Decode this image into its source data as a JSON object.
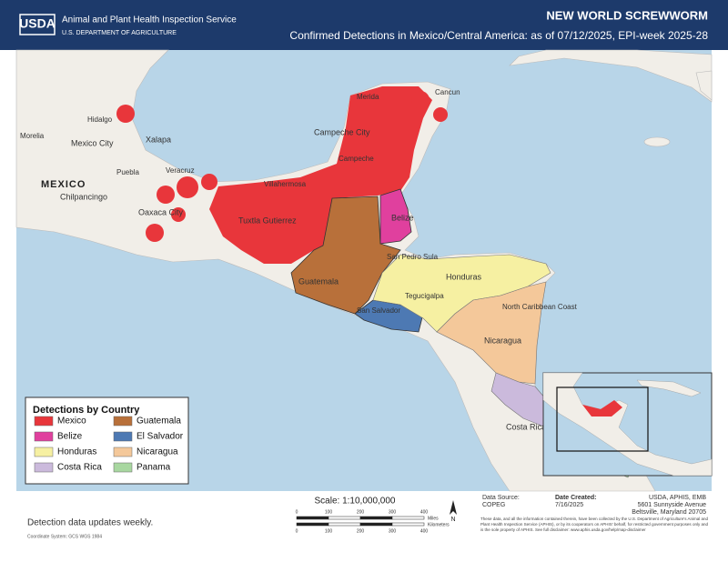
{
  "header": {
    "logo": "USDA",
    "agency": "Animal and Plant Health Inspection Service",
    "department": "U.S. DEPARTMENT OF AGRICULTURE",
    "title": "NEW WORLD SCREWWORM",
    "subtitle": "Confirmed Detections in Mexico/Central America: as of 07/12/2025, EPI-week 2025-28"
  },
  "map_labels": [
    "MEXICO",
    "Mexico City",
    "Hidalgo",
    "Morelia",
    "Puebla",
    "Xalapa",
    "Veracruz",
    "Chilpancingo",
    "Oaxaca City",
    "Villahermosa",
    "Tuxtla Gutierrez",
    "Campeche City",
    "Campeche",
    "Merida",
    "Cancun",
    "Belize",
    "Guatemala",
    "San Pedro Sula",
    "Honduras",
    "Tegucigalpa",
    "San Salvador",
    "North Caribbean Coast",
    "Nicaragua",
    "Costa Rica"
  ],
  "legend": {
    "title": "Detections by Country",
    "items": [
      {
        "name": "Mexico",
        "color": "#e8363b"
      },
      {
        "name": "Guatemala",
        "color": "#b8703a"
      },
      {
        "name": "Belize",
        "color": "#e0409e"
      },
      {
        "name": "El Salvador",
        "color": "#4d79b3"
      },
      {
        "name": "Honduras",
        "color": "#f6f0a2"
      },
      {
        "name": "Nicaragua",
        "color": "#f4c89a"
      },
      {
        "name": "Costa Rica",
        "color": "#cbbadc"
      },
      {
        "name": "Panama",
        "color": "#a8d7a0"
      }
    ]
  },
  "footer": {
    "note": "Detection data updates weekly.",
    "coordinate_system": "Coordinate System: GCS WGS 1984",
    "scale": "Scale: 1:10,000,000",
    "north": "N",
    "scale_bar": {
      "miles": {
        "ticks": [
          0,
          100,
          200,
          300,
          400
        ],
        "unit": "Miles"
      },
      "kilometers": {
        "ticks": [
          0,
          100,
          200,
          300,
          400
        ],
        "unit": "Kilometers"
      }
    },
    "data_source_label": "Data Source:",
    "data_source": "COPEG",
    "date_label": "Date Created:",
    "date": "7/16/2025",
    "office": "USDA, APHIS, EMB",
    "street": "5601 Sunnyside Avenue",
    "city": "Beltsville, Maryland 20705",
    "disclaimer": "These data, and all the information contained therein, have been collected by the U.S. Department of Agriculture's Animal and Plant Health Inspection Service (APHIS), or by its cooperators on APHIS' behalf, for restricted government purposes only and is the sole property of APHIS. See full disclaimer: www.aphis.usda.gov/help/map-disclaimer"
  }
}
